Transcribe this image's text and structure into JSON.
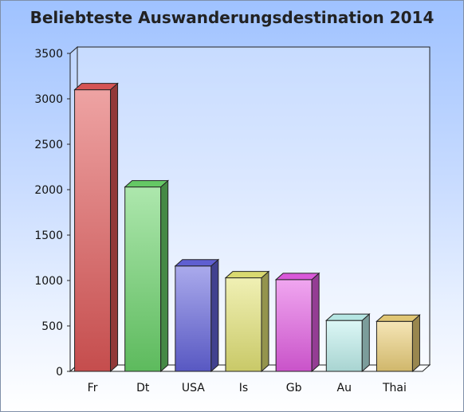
{
  "chart_data": {
    "type": "bar",
    "title": "Beliebteste Auswanderungsdestination 2014",
    "categories": [
      "Fr",
      "Dt",
      "USA",
      "Is",
      "Gb",
      "Au",
      "Thai"
    ],
    "values": [
      3100,
      2030,
      1160,
      1030,
      1010,
      560,
      550
    ],
    "colors": [
      "#e05858",
      "#6ad36a",
      "#6464dc",
      "#e4e476",
      "#e45ee4",
      "#bff1ee",
      "#ecd07a"
    ],
    "ylim": [
      0,
      3500
    ],
    "yticks": [
      0,
      500,
      1000,
      1500,
      2000,
      2500,
      3000,
      3500
    ],
    "grid": false,
    "legend": "none",
    "style": "3d"
  }
}
